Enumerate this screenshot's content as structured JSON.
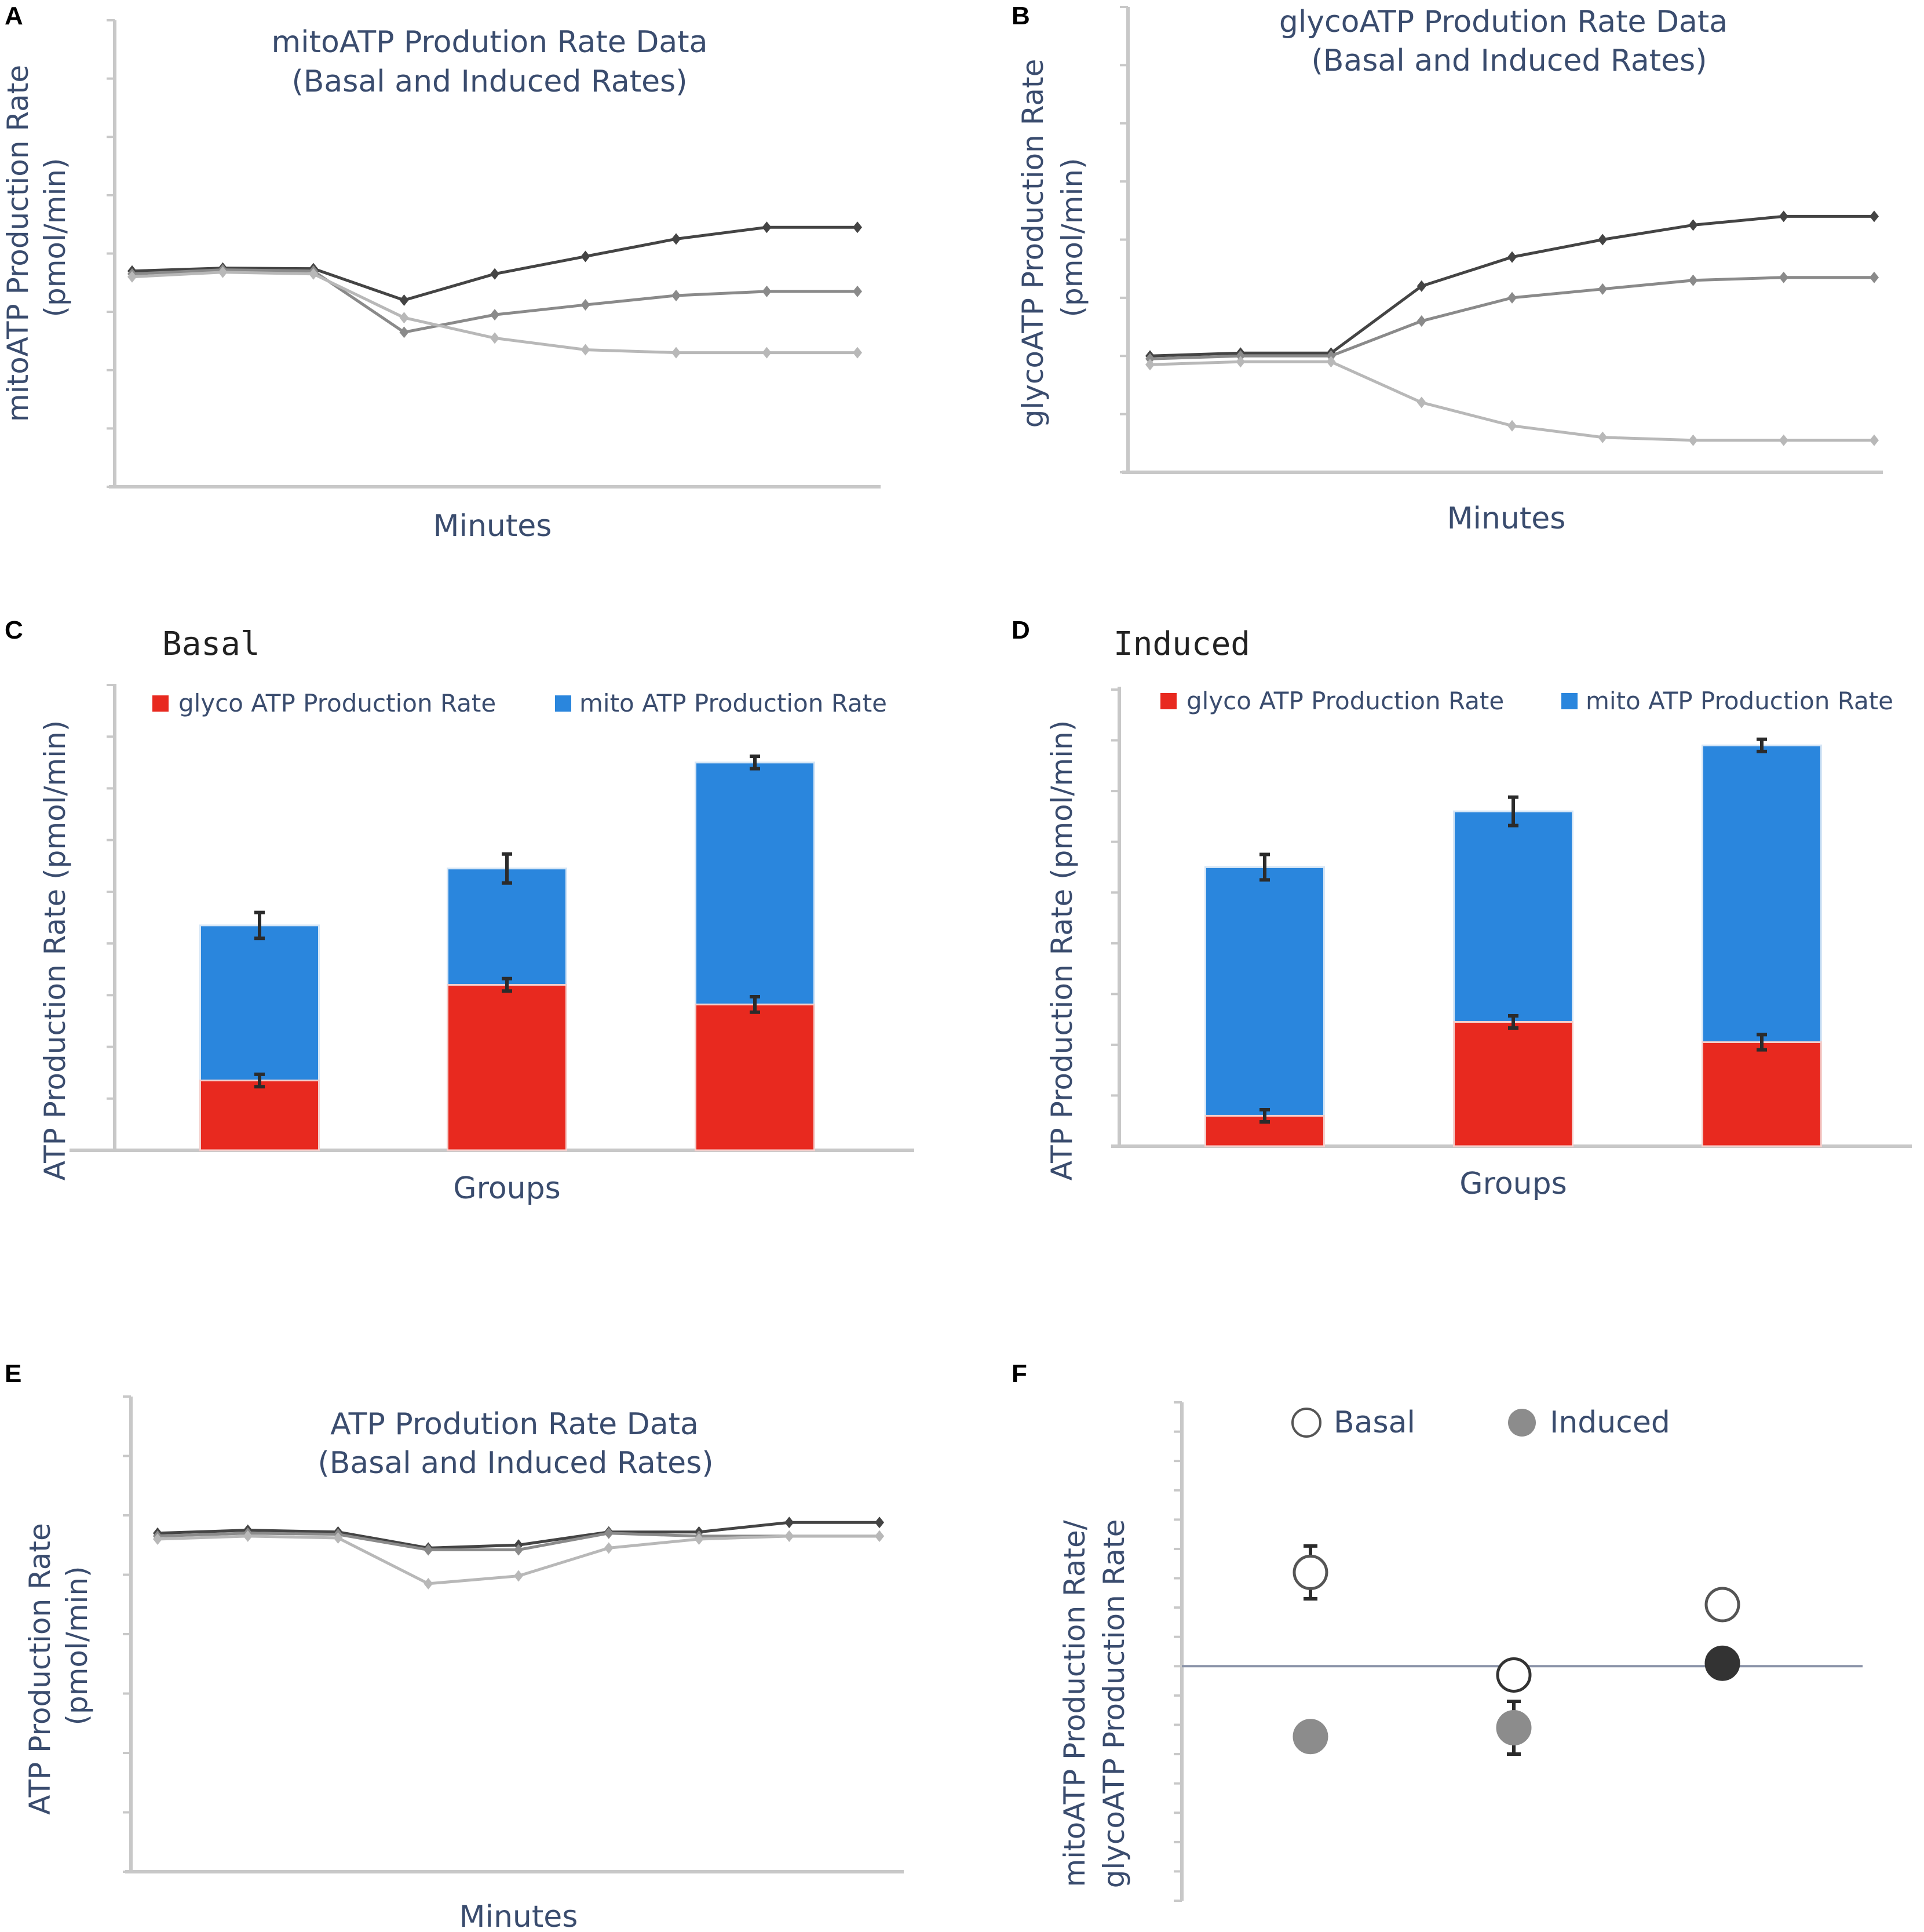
{
  "chart_data": [
    {
      "panel": "A",
      "type": "line",
      "title": "mitoATP Prodution Rate Data",
      "subtitle": "(Basal and Induced Rates)",
      "xlabel": "Minutes",
      "ylabel": "mitoATP Production Rate",
      "ylabel_unit": "(pmol/min)",
      "ylim": [
        0,
        8
      ],
      "series": [
        {
          "name": "series-1",
          "color": "#444444",
          "values": [
            3.7,
            3.75,
            3.74,
            3.2,
            3.65,
            3.95,
            4.25,
            4.45,
            4.45
          ]
        },
        {
          "name": "series-2",
          "color": "#8a8a8a",
          "values": [
            3.65,
            3.72,
            3.7,
            2.65,
            2.95,
            3.12,
            3.28,
            3.35,
            3.35
          ]
        },
        {
          "name": "series-3",
          "color": "#b8b8b8",
          "values": [
            3.6,
            3.68,
            3.65,
            2.9,
            2.55,
            2.35,
            2.3,
            2.3,
            2.3
          ]
        }
      ]
    },
    {
      "panel": "B",
      "type": "line",
      "title": "glycoATP Prodution Rate Data",
      "subtitle": "(Basal and Induced Rates)",
      "xlabel": "Minutes",
      "ylabel": "glycoATP Production Rate",
      "ylabel_unit": "(pmol/min)",
      "ylim": [
        0,
        8
      ],
      "series": [
        {
          "name": "series-1",
          "color": "#444444",
          "values": [
            2.0,
            2.05,
            2.05,
            3.2,
            3.7,
            4.0,
            4.25,
            4.4,
            4.4
          ]
        },
        {
          "name": "series-2",
          "color": "#8a8a8a",
          "values": [
            1.95,
            2.0,
            2.0,
            2.6,
            3.0,
            3.15,
            3.3,
            3.35,
            3.35
          ]
        },
        {
          "name": "series-3",
          "color": "#b8b8b8",
          "values": [
            1.85,
            1.9,
            1.9,
            1.2,
            0.8,
            0.6,
            0.55,
            0.55,
            0.55
          ]
        }
      ]
    },
    {
      "panel": "C",
      "type": "bar",
      "heading": "Basal",
      "xlabel": "Groups",
      "ylabel": "ATP Production Rate (pmol/min)",
      "ylim": [
        0,
        9
      ],
      "legend": [
        "glyco ATP Production Rate",
        "mito ATP Production Rate"
      ],
      "colors": {
        "glyco": "#e8291f",
        "mito": "#2a86dd"
      },
      "groups": [
        {
          "glyco": 1.35,
          "glyco_err": 0.12,
          "total": 4.35,
          "total_err": 0.25
        },
        {
          "glyco": 3.2,
          "glyco_err": 0.12,
          "total": 5.45,
          "total_err": 0.28
        },
        {
          "glyco": 2.82,
          "glyco_err": 0.15,
          "total": 7.5,
          "total_err": 0.12
        }
      ]
    },
    {
      "panel": "D",
      "type": "bar",
      "heading": "Induced",
      "xlabel": "Groups",
      "ylabel": "ATP Production Rate (pmol/min)",
      "ylim": [
        0,
        9
      ],
      "legend": [
        "glyco ATP Production Rate",
        "mito ATP Production Rate"
      ],
      "colors": {
        "glyco": "#e8291f",
        "mito": "#2a86dd"
      },
      "groups": [
        {
          "glyco": 0.6,
          "glyco_err": 0.12,
          "total": 5.5,
          "total_err": 0.25
        },
        {
          "glyco": 2.45,
          "glyco_err": 0.12,
          "total": 6.6,
          "total_err": 0.28
        },
        {
          "glyco": 2.05,
          "glyco_err": 0.15,
          "total": 7.9,
          "total_err": 0.12
        }
      ]
    },
    {
      "panel": "E",
      "type": "line",
      "title": "ATP Prodution Rate Data",
      "subtitle": "(Basal and Induced Rates)",
      "xlabel": "Minutes",
      "ylabel": "ATP Production Rate",
      "ylabel_unit": "(pmol/min)",
      "ylim": [
        0,
        8
      ],
      "series": [
        {
          "name": "series-1",
          "color": "#444444",
          "values": [
            5.7,
            5.75,
            5.72,
            5.45,
            5.5,
            5.72,
            5.72,
            5.88,
            5.88
          ]
        },
        {
          "name": "series-2",
          "color": "#8a8a8a",
          "values": [
            5.65,
            5.7,
            5.68,
            5.42,
            5.42,
            5.7,
            5.65,
            5.65,
            5.65
          ]
        },
        {
          "name": "series-3",
          "color": "#b8b8b8",
          "values": [
            5.6,
            5.65,
            5.62,
            4.85,
            4.98,
            5.45,
            5.6,
            5.65,
            5.65
          ]
        }
      ]
    },
    {
      "panel": "F",
      "type": "scatter",
      "ylabel": "mitoATP Production Rate/",
      "ylabel2": "glycoATP Production Rate",
      "ylim": [
        -4,
        4.5
      ],
      "reference_line": 0,
      "legend": [
        {
          "label": "Basal",
          "fill": "#ffffff",
          "stroke": "#555555"
        },
        {
          "label": "Induced",
          "fill": "#8c8c8c",
          "stroke": "#8c8c8c"
        }
      ],
      "points": [
        {
          "group": 1,
          "label": "Basal",
          "y": 1.6,
          "err": 0.45,
          "fill": "#ffffff",
          "stroke": "#555555"
        },
        {
          "group": 1,
          "label": "Induced",
          "y": -1.2,
          "err": 0,
          "fill": "#8c8c8c",
          "stroke": "#8c8c8c"
        },
        {
          "group": 2,
          "label": "Basal",
          "y": -0.15,
          "err": 0.25,
          "fill": "#ffffff",
          "stroke": "#333333"
        },
        {
          "group": 2,
          "label": "Induced",
          "y": -1.05,
          "err": 0.45,
          "fill": "#8c8c8c",
          "stroke": "#8c8c8c"
        },
        {
          "group": 3,
          "label": "Basal",
          "y": 1.05,
          "err": 0,
          "fill": "#ffffff",
          "stroke": "#555555"
        },
        {
          "group": 3,
          "label": "Induced",
          "y": 0.05,
          "err": 0,
          "fill": "#333333",
          "stroke": "#333333"
        }
      ]
    }
  ],
  "panels": [
    "A",
    "B",
    "C",
    "D",
    "E",
    "F"
  ]
}
